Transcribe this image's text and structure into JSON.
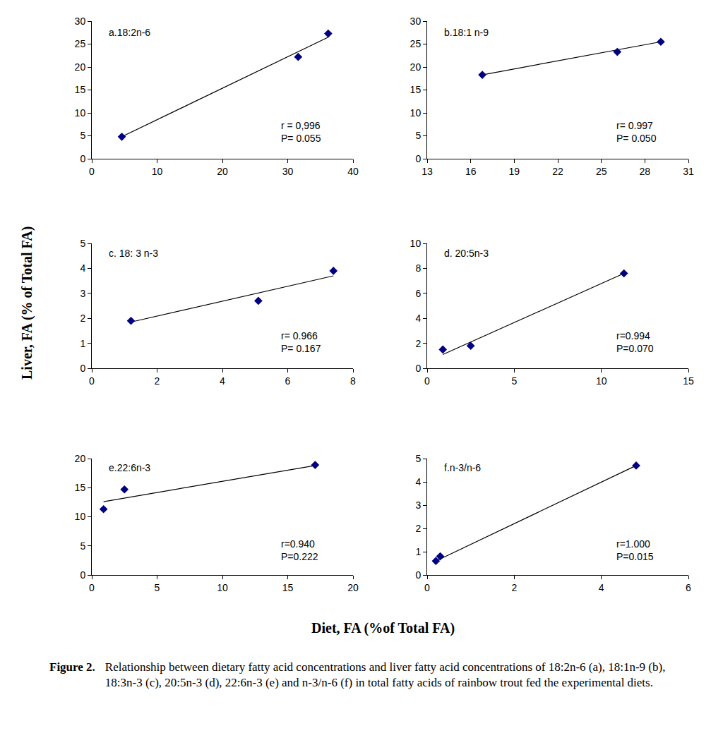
{
  "chart_data": [
    {
      "type": "scatter",
      "title": "a.18:2n-6",
      "x": [
        4.6,
        31.6,
        36.2
      ],
      "y": [
        4.8,
        22.2,
        27.3
      ],
      "fit_line": {
        "x": [
          4.6,
          36.2
        ],
        "y": [
          4.8,
          26.5
        ]
      },
      "stats": [
        "r = 0,996",
        "P= 0.055"
      ],
      "xlim": [
        0,
        40
      ],
      "xticks": [
        0,
        10,
        20,
        30,
        40
      ],
      "ylim": [
        0,
        30
      ],
      "yticks": [
        0,
        5,
        10,
        15,
        20,
        25,
        30
      ],
      "color": "#000080",
      "marker": "diamond",
      "line_style": "solid",
      "grid": false
    },
    {
      "type": "scatter",
      "title": "b.18:1 n-9",
      "x": [
        16.8,
        26.1,
        29.1
      ],
      "y": [
        18.3,
        23.3,
        25.5
      ],
      "fit_line": {
        "x": [
          16.8,
          29.1
        ],
        "y": [
          18.3,
          25.5
        ]
      },
      "stats": [
        "r= 0.997",
        "P= 0.050"
      ],
      "xlim": [
        13,
        31
      ],
      "xticks": [
        13,
        16,
        19,
        22,
        25,
        28,
        31
      ],
      "ylim": [
        0,
        30
      ],
      "yticks": [
        0,
        5,
        10,
        15,
        20,
        25,
        30
      ],
      "color": "#000080",
      "marker": "diamond",
      "line_style": "solid",
      "grid": false
    },
    {
      "type": "scatter",
      "title": "c. 18: 3 n-3",
      "x": [
        1.2,
        5.1,
        7.4
      ],
      "y": [
        1.9,
        2.7,
        3.9
      ],
      "fit_line": {
        "x": [
          1.2,
          7.4
        ],
        "y": [
          1.85,
          3.7
        ]
      },
      "stats": [
        "r= 0.966",
        "P= 0.167"
      ],
      "xlim": [
        0,
        8
      ],
      "xticks": [
        0,
        2,
        4,
        6,
        8
      ],
      "ylim": [
        0,
        5
      ],
      "yticks": [
        0,
        1,
        2,
        3,
        4,
        5
      ],
      "color": "#000080",
      "marker": "diamond",
      "line_style": "solid",
      "grid": false
    },
    {
      "type": "scatter",
      "title": "d. 20:5n-3",
      "x": [
        0.9,
        2.5,
        11.3
      ],
      "y": [
        1.5,
        1.8,
        7.6
      ],
      "fit_line": {
        "x": [
          0.9,
          11.3
        ],
        "y": [
          1.1,
          7.6
        ]
      },
      "stats": [
        "r=0.994",
        "P=0.070"
      ],
      "xlim": [
        0,
        15
      ],
      "xticks": [
        0,
        5,
        10,
        15
      ],
      "ylim": [
        0,
        10
      ],
      "yticks": [
        0,
        2,
        4,
        6,
        8,
        10
      ],
      "color": "#000080",
      "marker": "diamond",
      "line_style": "solid",
      "grid": false
    },
    {
      "type": "scatter",
      "title": "e.22:6n-3",
      "x": [
        0.9,
        2.5,
        17.1
      ],
      "y": [
        11.3,
        14.7,
        18.9
      ],
      "fit_line": {
        "x": [
          0.9,
          17.1
        ],
        "y": [
          12.6,
          18.8
        ]
      },
      "stats": [
        "r=0.940",
        "P=0.222"
      ],
      "xlim": [
        0,
        20
      ],
      "xticks": [
        0,
        5,
        10,
        15,
        20
      ],
      "ylim": [
        0,
        20
      ],
      "yticks": [
        0,
        5,
        10,
        15,
        20
      ],
      "color": "#000080",
      "marker": "diamond",
      "line_style": "solid",
      "grid": false
    },
    {
      "type": "scatter",
      "title": "f.n-3/n-6",
      "x": [
        0.2,
        0.3,
        4.8
      ],
      "y": [
        0.6,
        0.8,
        4.7
      ],
      "fit_line": {
        "x": [
          0.2,
          4.8
        ],
        "y": [
          0.6,
          4.7
        ]
      },
      "stats": [
        "r=1.000",
        "P=0.015"
      ],
      "xlim": [
        0,
        6
      ],
      "xticks": [
        0,
        2,
        4,
        6
      ],
      "ylim": [
        0,
        5
      ],
      "yticks": [
        0,
        1,
        2,
        3,
        4,
        5
      ],
      "color": "#000080",
      "marker": "diamond",
      "line_style": "solid",
      "grid": false
    }
  ],
  "figure": {
    "y_label": "Liver, FA (% of Total FA)",
    "x_label": "Diet, FA (%of Total FA)",
    "caption": {
      "label": "Figure 2.",
      "text": "Relationship between dietary fatty acid concentrations and liver fatty acid concentrations of 18:2n-6 (a), 18:1n-9 (b), 18:3n-3 (c), 20:5n-3 (d), 22:6n-3 (e) and n-3/n-6 (f) in total fatty acids of rainbow trout fed the experimental diets."
    }
  }
}
